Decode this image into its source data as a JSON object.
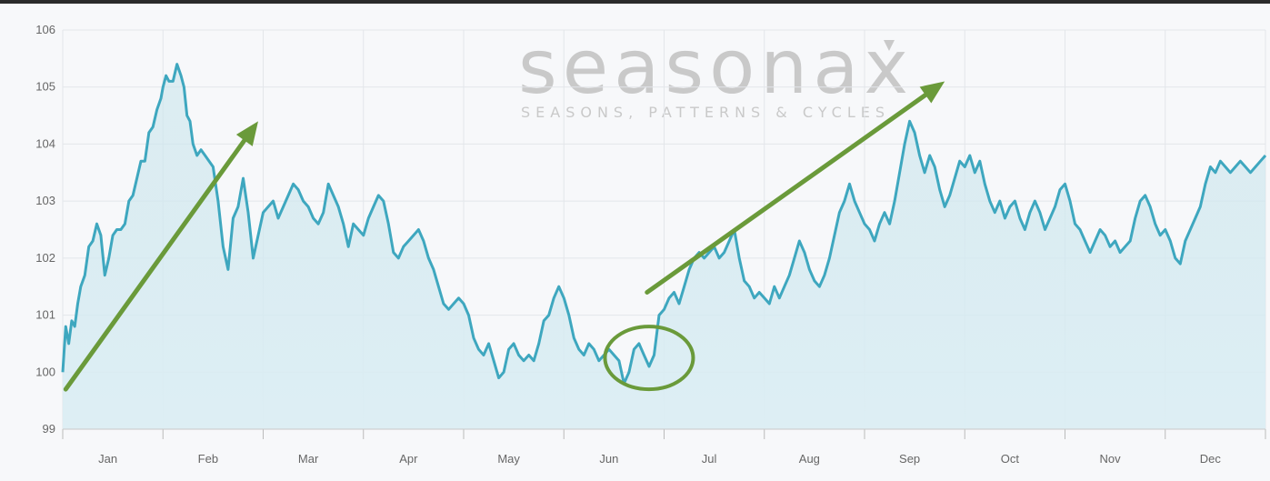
{
  "watermark": {
    "brand": "seasonax",
    "tagline": "SEASONS, PATTERNS & CYCLES"
  },
  "colors": {
    "line": "#3ea7bf",
    "area_top": "#c8e4ec",
    "area_bottom": "#dceef4",
    "arrow": "#6a9a3a",
    "grid": "#e3e6ea",
    "background": "#f7f8fa"
  },
  "chart_data": {
    "type": "area",
    "title": "",
    "xlabel": "",
    "ylabel": "",
    "ylim": [
      99,
      106
    ],
    "yticks": [
      "99",
      "100",
      "101",
      "102",
      "103",
      "104",
      "105",
      "106"
    ],
    "months": [
      "Jan",
      "Feb",
      "Mar",
      "Apr",
      "May",
      "Jun",
      "Jul",
      "Aug",
      "Sep",
      "Oct",
      "Nov",
      "Dec"
    ],
    "grid": true,
    "series": [
      {
        "x": [
          0,
          0.03,
          0.06,
          0.09,
          0.12,
          0.15,
          0.18,
          0.22,
          0.26,
          0.3,
          0.34,
          0.38,
          0.42,
          0.46,
          0.5,
          0.54,
          0.58,
          0.62,
          0.66,
          0.7,
          0.74,
          0.78,
          0.82,
          0.86,
          0.9,
          0.94,
          0.98,
          1.0,
          1.03,
          1.06,
          1.1,
          1.14,
          1.18,
          1.21,
          1.24,
          1.27,
          1.3,
          1.34,
          1.38,
          1.42,
          1.46,
          1.5,
          1.55,
          1.6,
          1.65,
          1.7,
          1.75,
          1.8,
          1.85,
          1.9,
          1.95,
          2.0,
          2.05,
          2.1,
          2.15,
          2.2,
          2.25,
          2.3,
          2.35,
          2.4,
          2.45,
          2.5,
          2.55,
          2.6,
          2.65,
          2.7,
          2.75,
          2.8,
          2.85,
          2.9,
          2.95,
          3.0,
          3.05,
          3.1,
          3.15,
          3.2,
          3.25,
          3.3,
          3.35,
          3.4,
          3.45,
          3.5,
          3.55,
          3.6,
          3.65,
          3.7,
          3.75,
          3.8,
          3.85,
          3.9,
          3.95,
          4.0,
          4.05,
          4.1,
          4.15,
          4.2,
          4.25,
          4.3,
          4.35,
          4.4,
          4.45,
          4.5,
          4.55,
          4.6,
          4.65,
          4.7,
          4.75,
          4.8,
          4.85,
          4.9,
          4.95,
          5.0,
          5.05,
          5.1,
          5.15,
          5.2,
          5.25,
          5.3,
          5.35,
          5.4,
          5.45,
          5.5,
          5.55,
          5.6,
          5.65,
          5.7,
          5.75,
          5.8,
          5.85,
          5.9,
          5.95,
          6.0,
          6.05,
          6.1,
          6.15,
          6.2,
          6.25,
          6.3,
          6.35,
          6.4,
          6.45,
          6.5,
          6.55,
          6.6,
          6.65,
          6.7,
          6.75,
          6.8,
          6.85,
          6.9,
          6.95,
          7.0,
          7.05,
          7.1,
          7.15,
          7.2,
          7.25,
          7.3,
          7.35,
          7.4,
          7.45,
          7.5,
          7.55,
          7.6,
          7.65,
          7.7,
          7.75,
          7.8,
          7.85,
          7.9,
          7.95,
          8.0,
          8.05,
          8.1,
          8.15,
          8.2,
          8.25,
          8.3,
          8.35,
          8.4,
          8.45,
          8.5,
          8.55,
          8.6,
          8.65,
          8.7,
          8.75,
          8.8,
          8.85,
          8.9,
          8.95,
          9.0,
          9.05,
          9.1,
          9.15,
          9.2,
          9.25,
          9.3,
          9.35,
          9.4,
          9.45,
          9.5,
          9.55,
          9.6,
          9.65,
          9.7,
          9.75,
          9.8,
          9.85,
          9.9,
          9.95,
          10.0,
          10.05,
          10.1,
          10.15,
          10.2,
          10.25,
          10.3,
          10.35,
          10.4,
          10.45,
          10.5,
          10.55,
          10.6,
          10.65,
          10.7,
          10.75,
          10.8,
          10.85,
          10.9,
          10.95,
          11.0,
          11.05,
          11.1,
          11.15,
          11.2,
          11.25,
          11.3,
          11.35,
          11.4,
          11.45,
          11.5,
          11.55,
          11.6,
          11.65,
          11.7,
          11.75,
          11.8,
          11.85,
          11.9,
          11.95,
          12.0
        ],
        "values": [
          100.0,
          100.8,
          100.5,
          100.9,
          100.8,
          101.2,
          101.5,
          101.7,
          102.2,
          102.3,
          102.6,
          102.4,
          101.7,
          102.0,
          102.4,
          102.5,
          102.5,
          102.6,
          103.0,
          103.1,
          103.4,
          103.7,
          103.7,
          104.2,
          104.3,
          104.6,
          104.8,
          105.0,
          105.2,
          105.1,
          105.1,
          105.4,
          105.2,
          105.0,
          104.5,
          104.4,
          104.0,
          103.8,
          103.9,
          103.8,
          103.7,
          103.6,
          103.0,
          102.2,
          101.8,
          102.7,
          102.9,
          103.4,
          102.8,
          102.0,
          102.4,
          102.8,
          102.9,
          103.0,
          102.7,
          102.9,
          103.1,
          103.3,
          103.2,
          103.0,
          102.9,
          102.7,
          102.6,
          102.8,
          103.3,
          103.1,
          102.9,
          102.6,
          102.2,
          102.6,
          102.5,
          102.4,
          102.7,
          102.9,
          103.1,
          103.0,
          102.6,
          102.1,
          102.0,
          102.2,
          102.3,
          102.4,
          102.5,
          102.3,
          102.0,
          101.8,
          101.5,
          101.2,
          101.1,
          101.2,
          101.3,
          101.2,
          101.0,
          100.6,
          100.4,
          100.3,
          100.5,
          100.2,
          99.9,
          100.0,
          100.4,
          100.5,
          100.3,
          100.2,
          100.3,
          100.2,
          100.5,
          100.9,
          101.0,
          101.3,
          101.5,
          101.3,
          101.0,
          100.6,
          100.4,
          100.3,
          100.5,
          100.4,
          100.2,
          100.3,
          100.4,
          100.3,
          100.2,
          99.8,
          100.0,
          100.4,
          100.5,
          100.3,
          100.1,
          100.3,
          101.0,
          101.1,
          101.3,
          101.4,
          101.2,
          101.5,
          101.8,
          102.0,
          102.1,
          102.0,
          102.1,
          102.2,
          102.0,
          102.1,
          102.3,
          102.5,
          102.0,
          101.6,
          101.5,
          101.3,
          101.4,
          101.3,
          101.2,
          101.5,
          101.3,
          101.5,
          101.7,
          102.0,
          102.3,
          102.1,
          101.8,
          101.6,
          101.5,
          101.7,
          102.0,
          102.4,
          102.8,
          103.0,
          103.3,
          103.0,
          102.8,
          102.6,
          102.5,
          102.3,
          102.6,
          102.8,
          102.6,
          103.0,
          103.5,
          104.0,
          104.4,
          104.2,
          103.8,
          103.5,
          103.8,
          103.6,
          103.2,
          102.9,
          103.1,
          103.4,
          103.7,
          103.6,
          103.8,
          103.5,
          103.7,
          103.3,
          103.0,
          102.8,
          103.0,
          102.7,
          102.9,
          103.0,
          102.7,
          102.5,
          102.8,
          103.0,
          102.8,
          102.5,
          102.7,
          102.9,
          103.2,
          103.3,
          103.0,
          102.6,
          102.5,
          102.3,
          102.1,
          102.3,
          102.5,
          102.4,
          102.2,
          102.3,
          102.1,
          102.2,
          102.3,
          102.7,
          103.0,
          103.1,
          102.9,
          102.6,
          102.4,
          102.5,
          102.3,
          102.0,
          101.9,
          102.3,
          102.5,
          102.7,
          102.9,
          103.3,
          103.6,
          103.5,
          103.7,
          103.6,
          103.5,
          103.6,
          103.7,
          103.6,
          103.5,
          103.6,
          103.7,
          103.8
        ]
      }
    ],
    "annotations": [
      {
        "type": "arrow",
        "from": [
          0.03,
          99.7
        ],
        "to": [
          1.95,
          104.4
        ]
      },
      {
        "type": "arrow",
        "from": [
          5.83,
          101.4
        ],
        "to": [
          8.8,
          105.1
        ]
      },
      {
        "type": "ellipse",
        "center": [
          5.85,
          100.25
        ],
        "radius": [
          0.44,
          0.55
        ]
      }
    ]
  }
}
